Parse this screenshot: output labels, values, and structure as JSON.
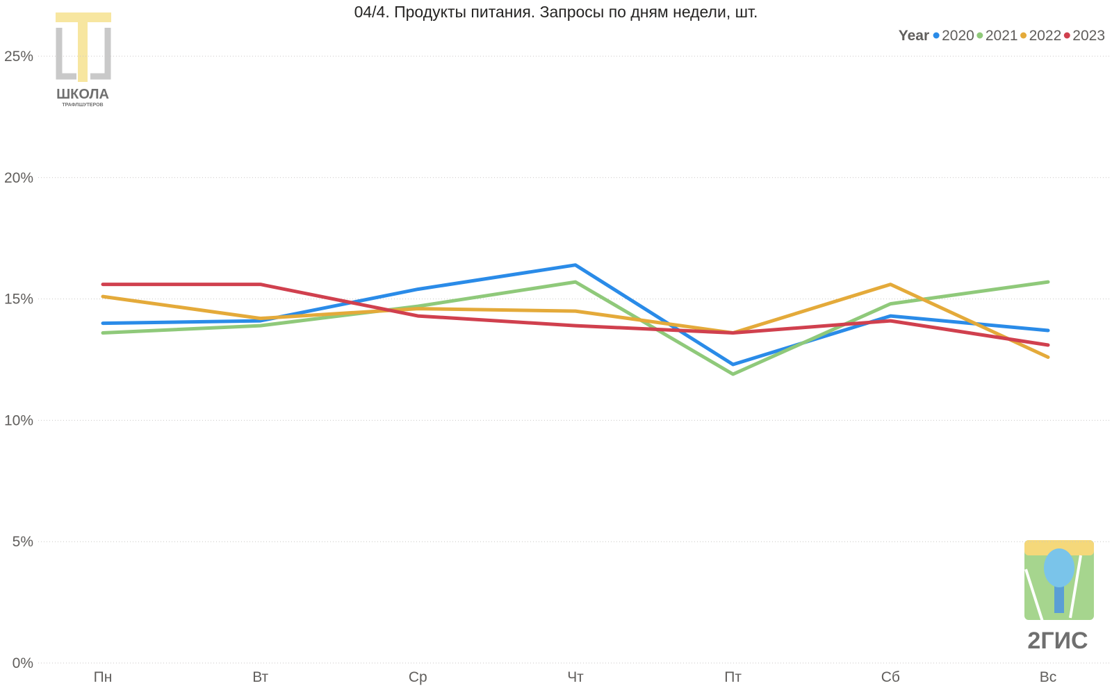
{
  "chart_data": {
    "type": "line",
    "title": "04/4. Продукты питания. Запросы по дням недели, шт.",
    "categories": [
      "Пн",
      "Вт",
      "Ср",
      "Чт",
      "Пт",
      "Сб",
      "Вс"
    ],
    "ylim": [
      0,
      25
    ],
    "yticks": [
      0,
      5,
      10,
      15,
      20,
      25
    ],
    "ytick_labels": [
      "0%",
      "5%",
      "10%",
      "15%",
      "20%",
      "25%"
    ],
    "grid": true,
    "legend": {
      "title": "Year",
      "position": "top-right"
    },
    "series": [
      {
        "name": "2020",
        "color": "#2a8be8",
        "values": [
          14.0,
          14.1,
          15.4,
          16.4,
          12.3,
          14.3,
          13.7
        ]
      },
      {
        "name": "2021",
        "color": "#8fc97a",
        "values": [
          13.6,
          13.9,
          14.7,
          15.7,
          11.9,
          14.8,
          15.7
        ]
      },
      {
        "name": "2022",
        "color": "#e4aa3a",
        "values": [
          15.1,
          14.2,
          14.6,
          14.5,
          13.6,
          15.6,
          12.6
        ]
      },
      {
        "name": "2023",
        "color": "#d0404e",
        "values": [
          15.6,
          15.6,
          14.3,
          13.9,
          13.6,
          14.1,
          13.1
        ]
      }
    ]
  },
  "logos": {
    "school": {
      "line1": "ШКОЛА",
      "line2": "ТРАФЛШУТЕРОВ"
    },
    "twogis": {
      "label": "2ГИС"
    }
  }
}
